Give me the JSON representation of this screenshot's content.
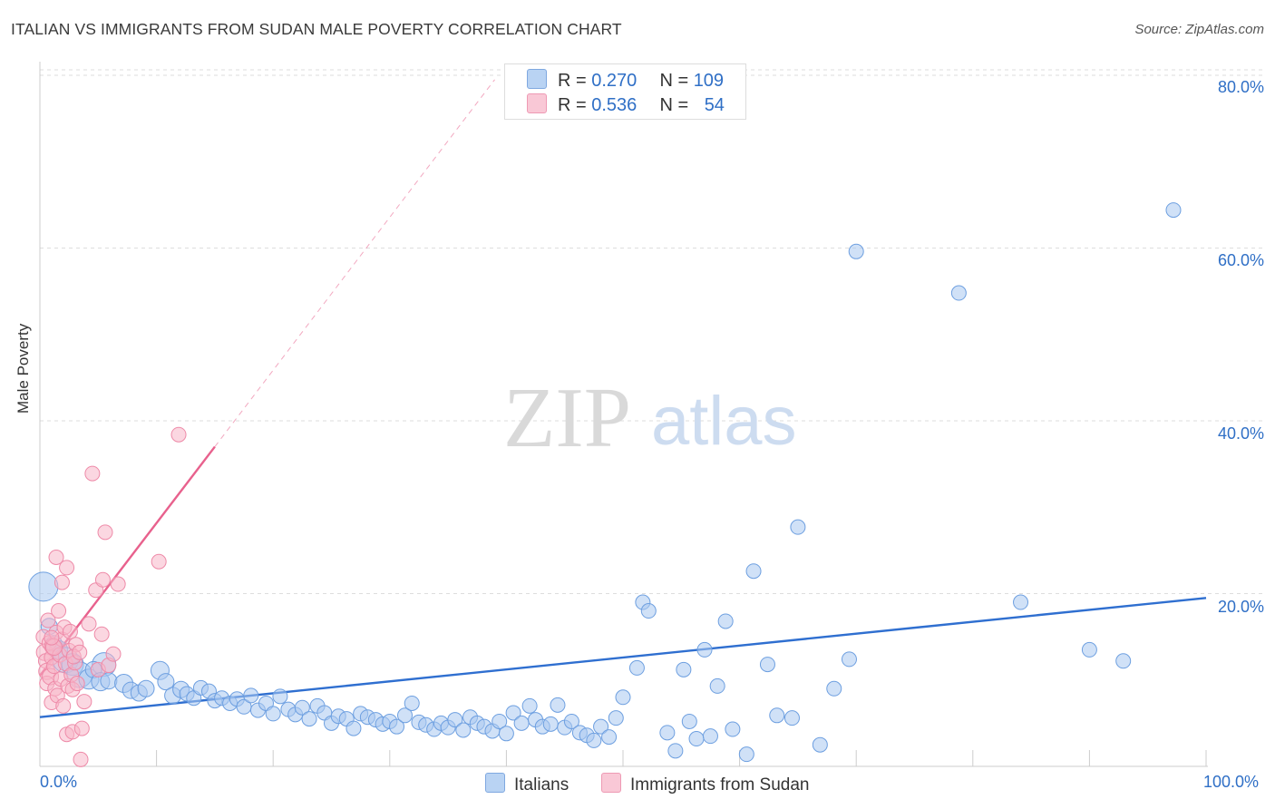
{
  "title": "ITALIAN VS IMMIGRANTS FROM SUDAN MALE POVERTY CORRELATION CHART",
  "source": "Source: ZipAtlas.com",
  "watermark": {
    "zip": "ZIP",
    "atlas": "atlas"
  },
  "legend": {
    "italians": {
      "r_label": "R =",
      "r": "0.270",
      "n_label": "N =",
      "n": "109"
    },
    "sudan": {
      "r_label": "R =",
      "r": "0.536",
      "n_label": "N =",
      "n": "54"
    }
  },
  "colors": {
    "italians_fill": "#a9c8f0",
    "italians_stroke": "#6d9fe0",
    "italians_line": "#2f6fd0",
    "sudan_fill": "#f7b6c8",
    "sudan_stroke": "#ee8aa8",
    "sudan_line": "#e8618d",
    "axis_text": "#2f6fc6",
    "grid": "#dddddd"
  },
  "chart_data": {
    "type": "scatter",
    "title": "ITALIAN VS IMMIGRANTS FROM SUDAN MALE POVERTY CORRELATION CHART",
    "xlabel": "",
    "ylabel": "Male Poverty",
    "xlim": [
      0,
      100
    ],
    "ylim": [
      0,
      80
    ],
    "x_tick_labels": [
      "0.0%",
      "100.0%"
    ],
    "y_tick_labels": [
      "20.0%",
      "40.0%",
      "60.0%",
      "80.0%"
    ],
    "y_ticks": [
      20,
      40,
      60,
      80
    ],
    "grid": true,
    "legend_position": "top-center",
    "series": [
      {
        "name": "Italians",
        "points": [
          [
            0.3,
            20.8,
            16
          ],
          [
            0.8,
            16.2,
            9
          ],
          [
            1.2,
            14.2,
            9
          ],
          [
            1.6,
            13.5,
            10
          ],
          [
            2.2,
            12.3,
            14
          ],
          [
            2.8,
            11.8,
            12
          ],
          [
            3.4,
            10.6,
            14
          ],
          [
            4.2,
            10.1,
            11
          ],
          [
            5.5,
            11.8,
            13
          ],
          [
            4.6,
            11.2,
            9
          ],
          [
            5.2,
            9.8,
            10
          ],
          [
            5.9,
            9.9,
            9
          ],
          [
            7.2,
            9.6,
            10
          ],
          [
            7.8,
            8.8,
            9
          ],
          [
            8.5,
            8.5,
            9
          ],
          [
            9.1,
            9.0,
            9
          ],
          [
            10.3,
            11.1,
            10
          ],
          [
            10.8,
            9.8,
            9
          ],
          [
            11.4,
            8.2,
            9
          ],
          [
            12.1,
            8.9,
            9
          ],
          [
            12.6,
            8.4,
            8
          ],
          [
            13.2,
            7.9,
            8
          ],
          [
            13.8,
            9.1,
            8
          ],
          [
            14.5,
            8.7,
            8
          ],
          [
            15.0,
            7.6,
            8
          ],
          [
            15.6,
            7.9,
            8
          ],
          [
            16.3,
            7.3,
            8
          ],
          [
            16.9,
            7.8,
            8
          ],
          [
            17.5,
            6.9,
            8
          ],
          [
            18.1,
            8.2,
            8
          ],
          [
            18.7,
            6.5,
            8
          ],
          [
            19.4,
            7.3,
            8
          ],
          [
            20.0,
            6.1,
            8
          ],
          [
            20.6,
            8.1,
            8
          ],
          [
            21.3,
            6.6,
            8
          ],
          [
            21.9,
            6.0,
            8
          ],
          [
            22.5,
            6.8,
            8
          ],
          [
            23.1,
            5.5,
            8
          ],
          [
            23.8,
            7.0,
            8
          ],
          [
            24.4,
            6.2,
            8
          ],
          [
            25.0,
            5.0,
            8
          ],
          [
            25.6,
            5.8,
            8
          ],
          [
            26.3,
            5.5,
            8
          ],
          [
            26.9,
            4.4,
            8
          ],
          [
            27.5,
            6.1,
            8
          ],
          [
            28.1,
            5.7,
            8
          ],
          [
            28.8,
            5.4,
            8
          ],
          [
            29.4,
            4.9,
            8
          ],
          [
            30.0,
            5.2,
            8
          ],
          [
            30.6,
            4.6,
            8
          ],
          [
            31.3,
            5.9,
            8
          ],
          [
            31.9,
            7.3,
            8
          ],
          [
            32.5,
            5.1,
            8
          ],
          [
            33.1,
            4.8,
            8
          ],
          [
            33.8,
            4.3,
            8
          ],
          [
            34.4,
            5.0,
            8
          ],
          [
            35.0,
            4.5,
            8
          ],
          [
            35.6,
            5.4,
            8
          ],
          [
            36.3,
            4.2,
            8
          ],
          [
            36.9,
            5.7,
            8
          ],
          [
            37.5,
            5.0,
            8
          ],
          [
            38.1,
            4.6,
            8
          ],
          [
            38.8,
            4.1,
            8
          ],
          [
            39.4,
            5.2,
            8
          ],
          [
            40.0,
            3.8,
            8
          ],
          [
            40.6,
            6.2,
            8
          ],
          [
            41.3,
            5.0,
            8
          ],
          [
            42.0,
            7.0,
            8
          ],
          [
            42.5,
            5.4,
            8
          ],
          [
            43.1,
            4.6,
            8
          ],
          [
            43.8,
            4.9,
            8
          ],
          [
            44.4,
            7.1,
            8
          ],
          [
            45.0,
            4.5,
            8
          ],
          [
            45.6,
            5.2,
            8
          ],
          [
            46.3,
            3.9,
            8
          ],
          [
            46.9,
            3.6,
            8
          ],
          [
            47.5,
            3.0,
            8
          ],
          [
            48.1,
            4.6,
            8
          ],
          [
            48.8,
            3.4,
            8
          ],
          [
            49.4,
            5.6,
            8
          ],
          [
            50.0,
            8.0,
            8
          ],
          [
            51.2,
            11.4,
            8
          ],
          [
            51.7,
            19.0,
            8
          ],
          [
            52.2,
            18.0,
            8
          ],
          [
            53.8,
            3.9,
            8
          ],
          [
            54.5,
            1.8,
            8
          ],
          [
            55.2,
            11.2,
            8
          ],
          [
            55.7,
            5.2,
            8
          ],
          [
            56.3,
            3.2,
            8
          ],
          [
            57.0,
            13.5,
            8
          ],
          [
            57.5,
            3.5,
            8
          ],
          [
            58.1,
            9.3,
            8
          ],
          [
            58.8,
            16.8,
            8
          ],
          [
            59.4,
            4.3,
            8
          ],
          [
            60.6,
            1.4,
            8
          ],
          [
            61.2,
            22.6,
            8
          ],
          [
            62.4,
            11.8,
            8
          ],
          [
            63.2,
            5.9,
            8
          ],
          [
            64.5,
            5.6,
            8
          ],
          [
            65.0,
            27.7,
            8
          ],
          [
            66.9,
            2.5,
            8
          ],
          [
            68.1,
            9.0,
            8
          ],
          [
            69.4,
            12.4,
            8
          ],
          [
            70.0,
            59.6,
            8
          ],
          [
            78.8,
            54.8,
            8
          ],
          [
            84.1,
            19.0,
            8
          ],
          [
            90.0,
            13.5,
            8
          ],
          [
            92.9,
            12.2,
            8
          ],
          [
            97.2,
            64.4,
            8
          ]
        ]
      },
      {
        "name": "Immigrants from Sudan",
        "points": [
          [
            0.3,
            15.0,
            8
          ],
          [
            0.4,
            13.2,
            9
          ],
          [
            0.5,
            12.2,
            8
          ],
          [
            0.6,
            11.0,
            9
          ],
          [
            0.6,
            9.6,
            8
          ],
          [
            0.7,
            16.9,
            8
          ],
          [
            0.8,
            14.3,
            8
          ],
          [
            0.9,
            10.4,
            9
          ],
          [
            1.0,
            12.6,
            8
          ],
          [
            1.0,
            7.4,
            8
          ],
          [
            1.1,
            13.9,
            9
          ],
          [
            1.2,
            11.6,
            8
          ],
          [
            1.3,
            9.0,
            8
          ],
          [
            1.4,
            15.5,
            8
          ],
          [
            1.4,
            24.2,
            8
          ],
          [
            1.5,
            8.2,
            8
          ],
          [
            1.6,
            18.0,
            8
          ],
          [
            1.7,
            12.9,
            8
          ],
          [
            1.8,
            10.1,
            8
          ],
          [
            1.9,
            21.3,
            8
          ],
          [
            1.9,
            14.7,
            8
          ],
          [
            2.0,
            7.0,
            8
          ],
          [
            2.1,
            16.1,
            8
          ],
          [
            2.2,
            11.9,
            8
          ],
          [
            2.3,
            23.0,
            8
          ],
          [
            2.3,
            3.7,
            8
          ],
          [
            2.4,
            9.3,
            8
          ],
          [
            2.5,
            13.4,
            8
          ],
          [
            2.6,
            15.6,
            8
          ],
          [
            2.7,
            10.6,
            8
          ],
          [
            2.8,
            4.0,
            8
          ],
          [
            2.8,
            8.9,
            8
          ],
          [
            3.0,
            12.0,
            8
          ],
          [
            3.1,
            14.1,
            8
          ],
          [
            3.2,
            9.6,
            8
          ],
          [
            3.5,
            0.8,
            8
          ],
          [
            3.6,
            4.4,
            8
          ],
          [
            3.8,
            7.5,
            8
          ],
          [
            4.2,
            16.5,
            8
          ],
          [
            4.5,
            33.9,
            8
          ],
          [
            4.8,
            20.4,
            8
          ],
          [
            5.0,
            11.2,
            8
          ],
          [
            5.3,
            15.3,
            8
          ],
          [
            5.4,
            21.6,
            8
          ],
          [
            5.6,
            27.1,
            8
          ],
          [
            5.9,
            11.7,
            8
          ],
          [
            6.3,
            13.0,
            8
          ],
          [
            6.7,
            21.1,
            8
          ],
          [
            1.2,
            13.8,
            9
          ],
          [
            2.9,
            12.7,
            8
          ],
          [
            3.4,
            13.2,
            8
          ],
          [
            10.2,
            23.7,
            8
          ],
          [
            11.9,
            38.4,
            8
          ],
          [
            1.0,
            14.9,
            8
          ]
        ]
      }
    ],
    "trendlines": [
      {
        "series": "Italians",
        "x": [
          0,
          100
        ],
        "y": [
          5.7,
          19.5
        ],
        "style": "solid"
      },
      {
        "series": "Immigrants from Sudan",
        "x": [
          0,
          15
        ],
        "y": [
          10.5,
          37.0
        ],
        "style": "solid"
      },
      {
        "series": "Immigrants from Sudan",
        "x": [
          15,
          39
        ],
        "y": [
          37.0,
          79.5
        ],
        "style": "dashed"
      }
    ]
  }
}
